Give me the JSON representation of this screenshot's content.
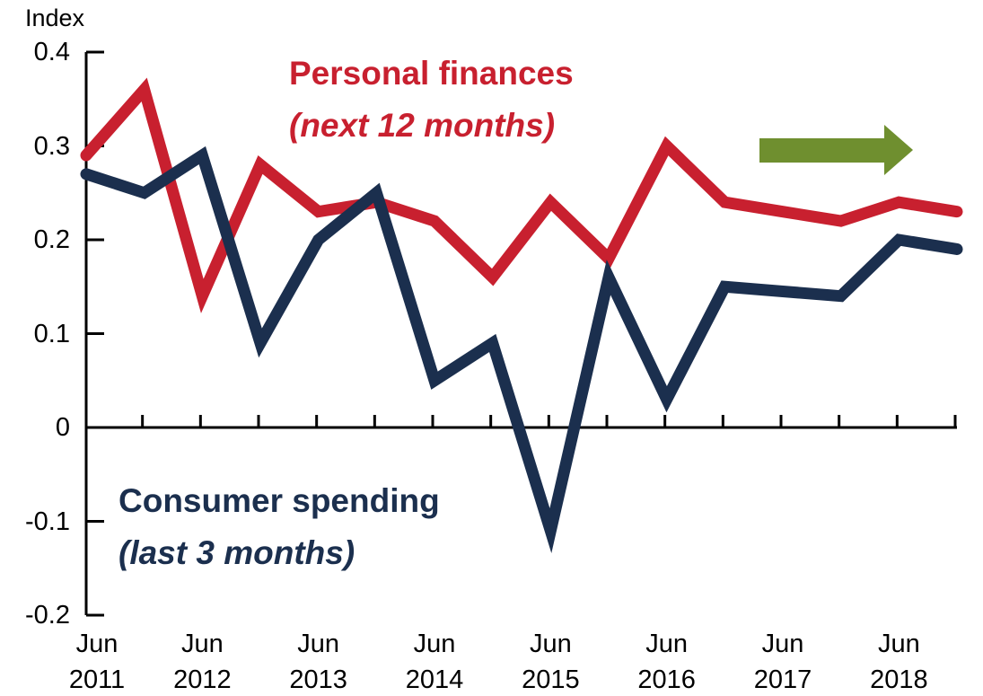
{
  "chart_data": {
    "type": "line",
    "y_label": "Index",
    "categories": [
      "Jun 2011",
      null,
      "Jun 2012",
      null,
      "Jun 2013",
      null,
      "Jun 2014",
      null,
      "Jun 2015",
      null,
      "Jun 2016",
      null,
      "Jun 2017",
      null,
      "Jun 2018",
      null
    ],
    "series": [
      {
        "name": "Personal finances",
        "subname": "(next 12 months)",
        "color": "#c8202f",
        "values": [
          0.29,
          0.36,
          0.14,
          0.28,
          0.23,
          0.24,
          0.22,
          0.16,
          0.24,
          0.18,
          0.3,
          0.24,
          0.23,
          0.22,
          0.24,
          0.23
        ]
      },
      {
        "name": "Consumer spending",
        "subname": "(last 3 months)",
        "color": "#1b2f4e",
        "values": [
          0.27,
          0.25,
          0.29,
          0.09,
          0.2,
          0.25,
          0.05,
          0.09,
          -0.11,
          0.16,
          0.03,
          0.15,
          0.145,
          0.14,
          0.2,
          0.19
        ]
      }
    ],
    "ylim": [
      -0.2,
      0.4
    ],
    "yticks": [
      -0.2,
      -0.1,
      0,
      0.1,
      0.2,
      0.3,
      0.4
    ]
  }
}
